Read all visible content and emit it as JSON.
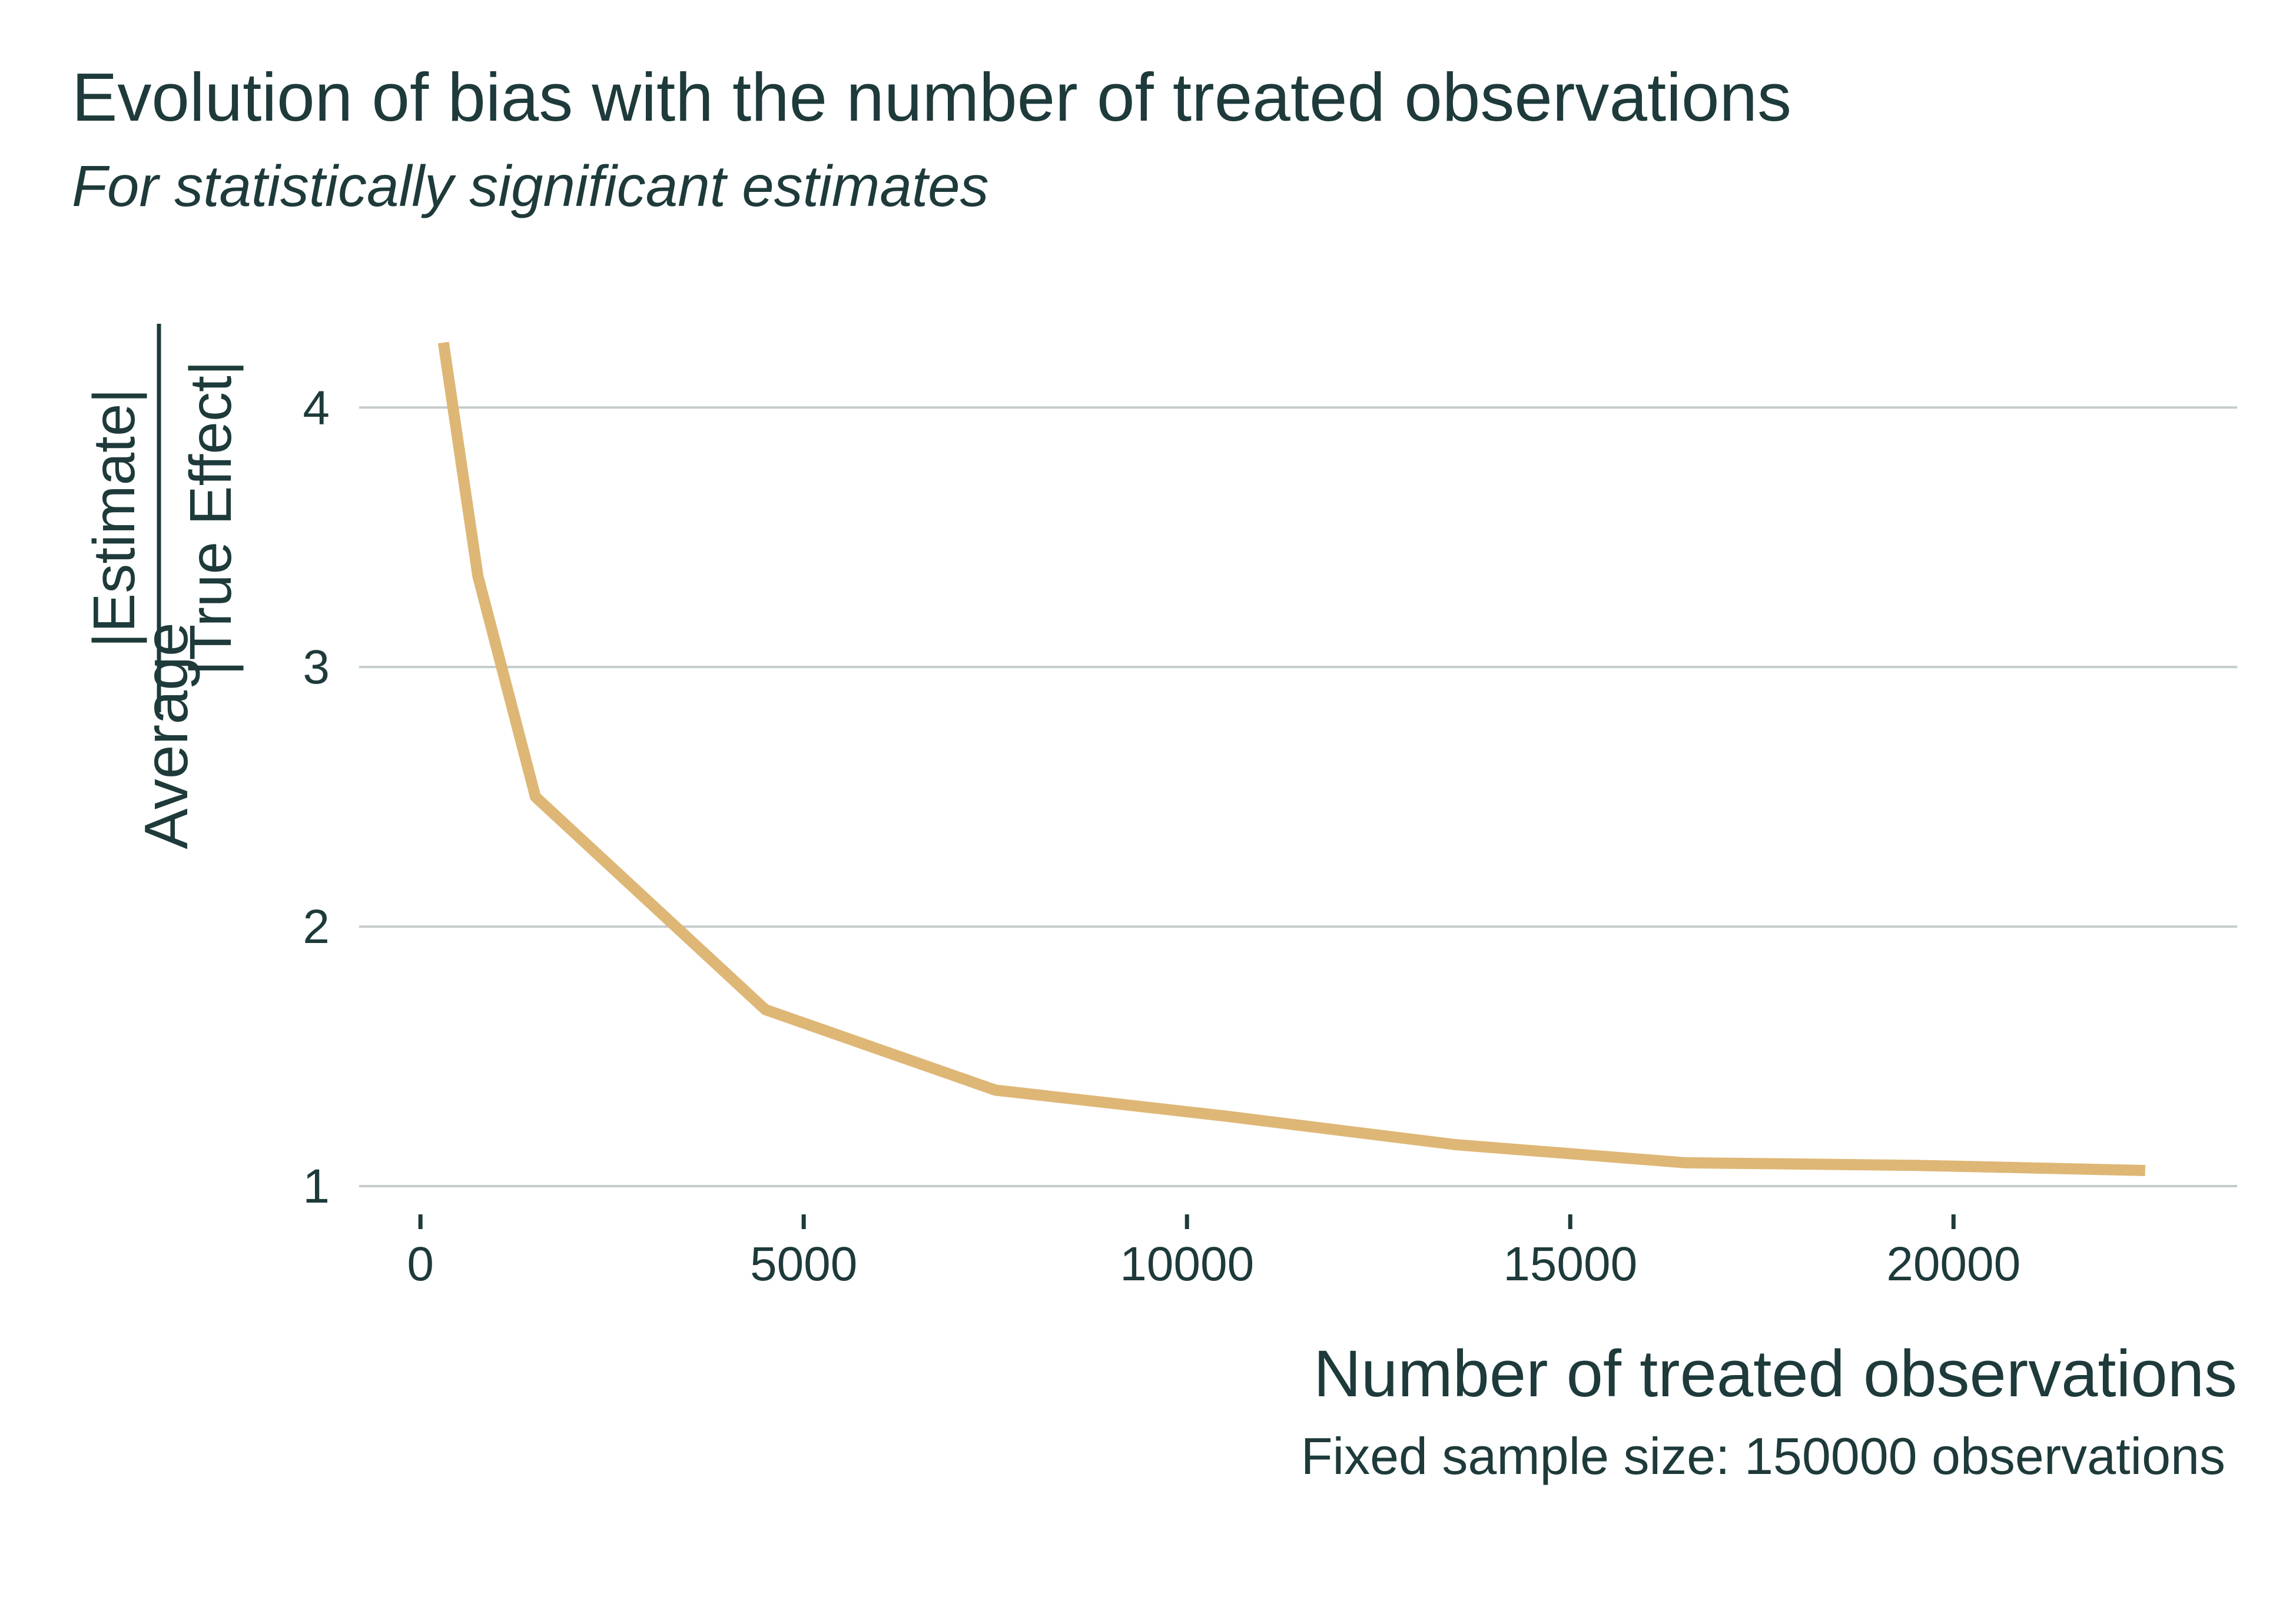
{
  "colors": {
    "text": "#1e3a3a",
    "grid": "#c5cccc",
    "line": "#deb776",
    "background": "#ffffff"
  },
  "chart_data": {
    "type": "line",
    "title": "Evolution of bias with the number of treated observations",
    "subtitle": "For statistically significant estimates",
    "xlabel": "Number of treated observations",
    "caption": "Fixed sample size: 150000 observations",
    "ylabel": {
      "prefix": "Average",
      "numerator": "|Estimate|",
      "denominator": "|True Effect|"
    },
    "xlim": [
      -800,
      23700
    ],
    "ylim": [
      1,
      4.3
    ],
    "x_ticks": [
      0,
      5000,
      10000,
      15000,
      20000
    ],
    "x_tick_labels": [
      "0",
      "5000",
      "10000",
      "15000",
      "20000"
    ],
    "y_ticks": [
      1,
      2,
      3,
      4
    ],
    "y_tick_labels": [
      "1",
      "2",
      "3",
      "4"
    ],
    "grid": "horizontal",
    "series": [
      {
        "x": [
          300,
          750,
          1500,
          4500,
          7500,
          10500,
          13500,
          16500,
          19500,
          22500
        ],
        "y": [
          4.25,
          3.35,
          2.5,
          1.68,
          1.37,
          1.27,
          1.16,
          1.09,
          1.08,
          1.06
        ]
      }
    ]
  }
}
